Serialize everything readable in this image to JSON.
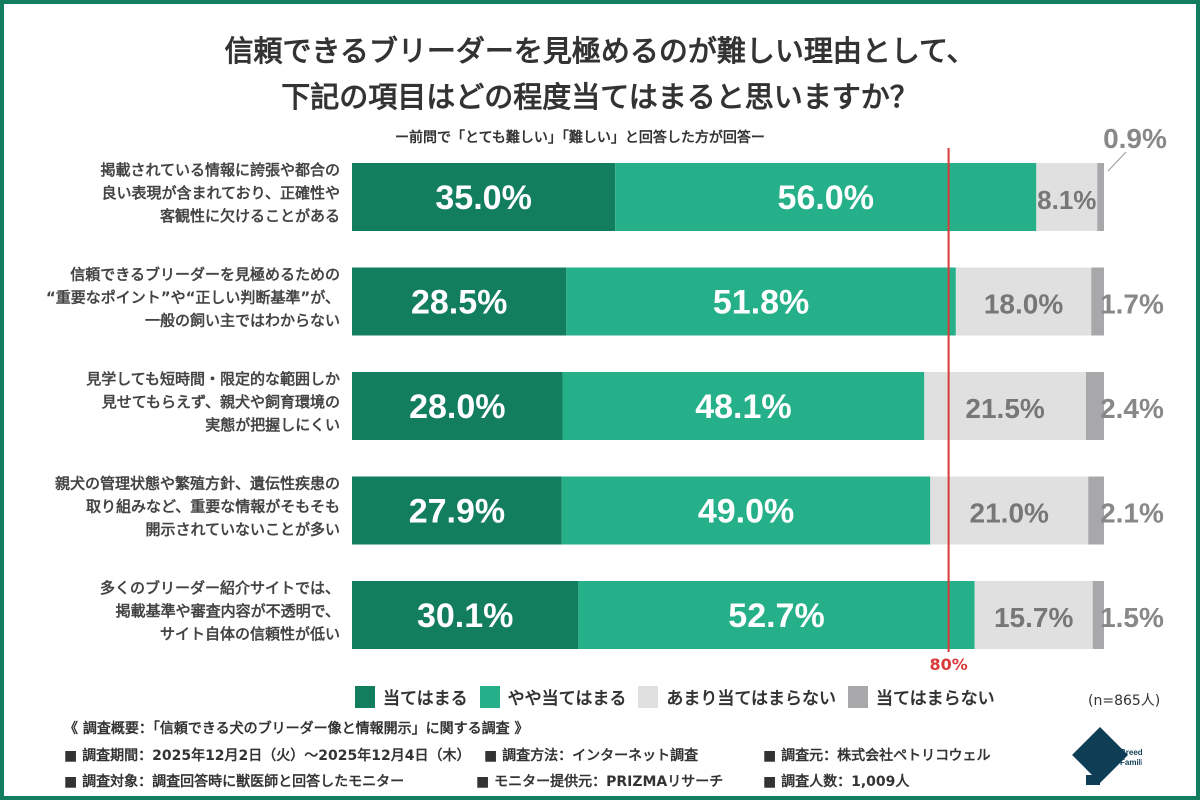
{
  "title_lines": [
    "信頼できるブリーダーを見極めるのが難しい理由として、",
    "下記の項目はどの程度当てはまると思いますか？"
  ],
  "subtitle": "ー前問で「とても難しい」「難しい」と回答した方が回答ー",
  "colors": {
    "frame": "#137e5e",
    "ref_line": "#d93a3a"
  },
  "chart_data": {
    "type": "bar",
    "orientation": "horizontal",
    "stacked": true,
    "xlim": [
      0,
      100
    ],
    "categories": [
      [
        "掲載されている情報に誇張や都合の",
        "良い表現が含まれており、正確性や",
        "客観性に欠けることがある"
      ],
      [
        "信頼できるブリーダーを見極めるための",
        "“重要なポイント”や“正しい判断基準”が、",
        "一般の飼い主ではわからない"
      ],
      [
        "見学しても短時間・限定的な範囲しか",
        "見せてもらえず、親犬や飼育環境の",
        "実態が把握しにくい"
      ],
      [
        "親犬の管理状態や繁殖方針、遺伝性疾患の",
        "取り組みなど、重要な情報がそもそも",
        "開示されていないことが多い"
      ],
      [
        "多くのブリーダー紹介サイトでは、",
        "掲載基準や審査内容が不透明で、",
        "サイト自体の信頼性が低い"
      ]
    ],
    "series": [
      {
        "name": "当てはまる",
        "color": "#137e5e",
        "values": [
          35.0,
          28.5,
          28.0,
          27.9,
          30.1
        ]
      },
      {
        "name": "やや当てはまる",
        "color": "#25b08a",
        "values": [
          56.0,
          51.8,
          48.1,
          49.0,
          52.7
        ]
      },
      {
        "name": "あまり当てはまらない",
        "color": "#e1e0e1",
        "values": [
          8.1,
          18.0,
          21.5,
          21.0,
          15.7
        ]
      },
      {
        "name": "当てはまらない",
        "color": "#a8a8aa",
        "values": [
          0.9,
          1.7,
          2.4,
          2.1,
          1.5
        ]
      }
    ],
    "reference_line": {
      "value": 80,
      "label": "80%"
    },
    "n_label": "(n=865人)"
  },
  "footer": {
    "heading": "《 調査概要：「信頼できる犬のブリーダー像と情報開示」に関する調査 》",
    "items": [
      "■ 調査期間：2025年12月2日（火）～2025年12月4日（木）",
      "■ 調査方法：インターネット調査",
      "■ 調査元：株式会社ペトリコウェル",
      "■ 調査対象：調査回答時に獣医師と回答したモニター",
      "■ モニター提供元：PRIZMAリサーチ",
      "■ 調査人数：1,009人"
    ]
  },
  "logo": {
    "text": [
      "Breeder",
      "Families"
    ]
  }
}
